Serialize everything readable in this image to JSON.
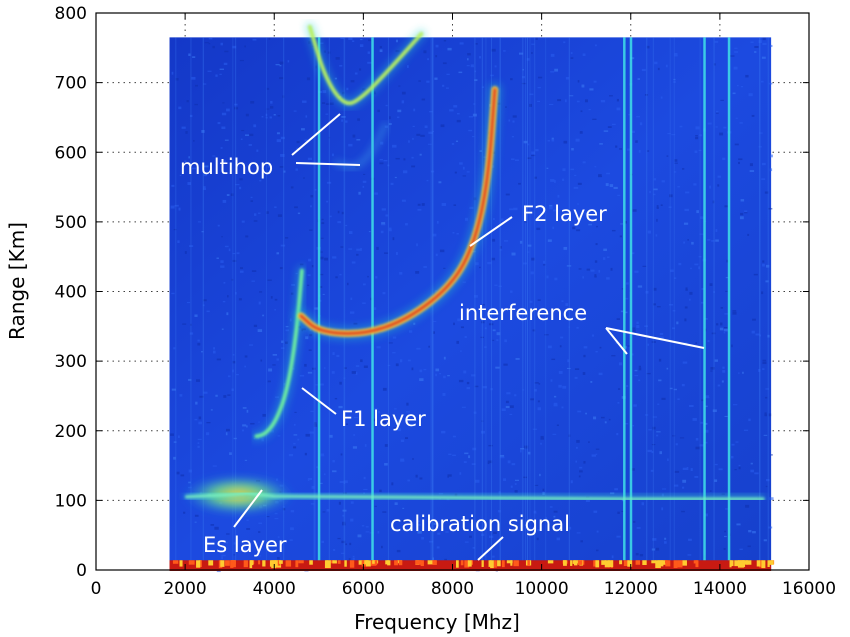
{
  "chart_data": {
    "type": "heatmap",
    "title": "",
    "xlabel": "Frequency [Mhz]",
    "ylabel": "Range [Km]",
    "xlim": [
      0,
      16000
    ],
    "ylim": [
      0,
      800
    ],
    "xticks": [
      0,
      2000,
      4000,
      6000,
      8000,
      10000,
      12000,
      14000,
      16000
    ],
    "yticks": [
      0,
      100,
      200,
      300,
      400,
      500,
      600,
      700,
      800
    ],
    "grid": true,
    "data_extent": {
      "x": [
        1650,
        15150
      ],
      "y": [
        0,
        765
      ]
    },
    "colors": {
      "background": "#1a44d6",
      "interference": "#3fe0e8",
      "echo_strong": "#e03c1e",
      "echo_mid": "#ffd23a",
      "echo_weak": "#55e6b8",
      "calibration": "#c81a12"
    },
    "traces": [
      {
        "name": "F1 layer",
        "points": [
          [
            3600,
            192
          ],
          [
            3800,
            195
          ],
          [
            4050,
            215
          ],
          [
            4300,
            260
          ],
          [
            4500,
            340
          ],
          [
            4620,
            430
          ]
        ]
      },
      {
        "name": "F2 layer",
        "points": [
          [
            4600,
            365
          ],
          [
            5000,
            342
          ],
          [
            6000,
            338
          ],
          [
            7000,
            360
          ],
          [
            8000,
            410
          ],
          [
            8500,
            470
          ],
          [
            8800,
            560
          ],
          [
            8950,
            690
          ]
        ]
      },
      {
        "name": "multihop",
        "points": [
          [
            4800,
            780
          ],
          [
            5150,
            705
          ],
          [
            5600,
            665
          ],
          [
            6000,
            680
          ],
          [
            6600,
            720
          ],
          [
            7300,
            770
          ]
        ]
      },
      {
        "name": "multihop faint",
        "points": [
          [
            5400,
            585
          ],
          [
            5800,
            575
          ],
          [
            6200,
            600
          ],
          [
            6500,
            640
          ]
        ]
      },
      {
        "name": "Es layer",
        "points": [
          [
            2000,
            105
          ],
          [
            3000,
            108
          ],
          [
            3400,
            110
          ],
          [
            4000,
            106
          ],
          [
            8000,
            104
          ],
          [
            12000,
            102
          ],
          [
            15000,
            102
          ]
        ]
      }
    ],
    "interference_lines": [
      5000,
      6200,
      11850,
      12000,
      13650,
      14200
    ],
    "calibration_signal": {
      "y": 5
    },
    "annotations": [
      {
        "text": "multihop",
        "at": [
          2400,
          575
        ]
      },
      {
        "text": "F2 layer",
        "at": [
          9800,
          505
        ]
      },
      {
        "text": "interference",
        "at": [
          12500,
          360
        ]
      },
      {
        "text": "F1 layer",
        "at": [
          7400,
          210
        ]
      },
      {
        "text": "Es layer",
        "at": [
          3300,
          30
        ]
      },
      {
        "text": "calibration signal",
        "at": [
          8500,
          40
        ]
      }
    ]
  }
}
